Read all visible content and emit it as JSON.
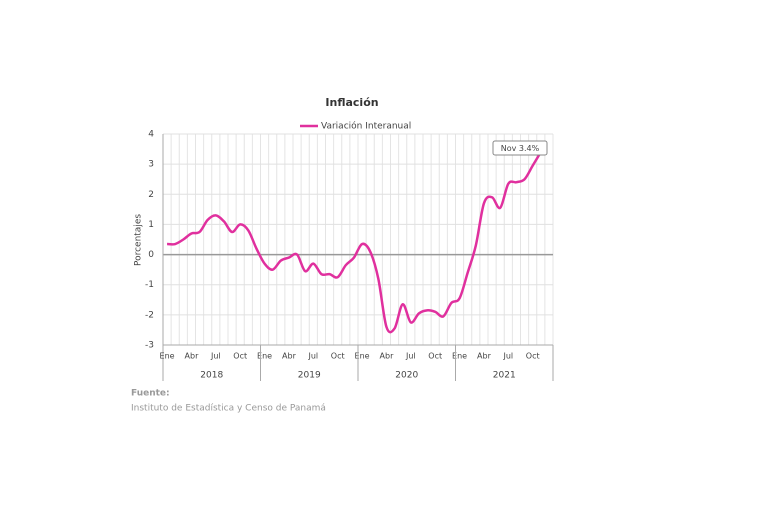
{
  "chart_data": {
    "type": "line",
    "title": "Inflación",
    "y_label": "Porcentajes",
    "categories": [
      "Ene",
      null,
      null,
      "Abr",
      null,
      null,
      "Jul",
      null,
      null,
      "Oct",
      null,
      null,
      "Ene",
      null,
      null,
      "Abr",
      null,
      null,
      "Jul",
      null,
      null,
      "Oct",
      null,
      null,
      "Ene",
      null,
      null,
      "Abr",
      null,
      null,
      "Jul",
      null,
      null,
      "Oct",
      null,
      null,
      "Ene",
      null,
      null,
      "Abr",
      null,
      null,
      "Jul",
      null,
      null,
      "Oct",
      null
    ],
    "year_groups": [
      "2018",
      "2019",
      "2020",
      "2021"
    ],
    "series": [
      {
        "name": "Variación Interanual",
        "color": "#e0309e",
        "values": [
          0.35,
          0.35,
          0.5,
          0.7,
          0.75,
          1.15,
          1.3,
          1.1,
          0.75,
          1.0,
          0.8,
          0.2,
          -0.3,
          -0.5,
          -0.2,
          -0.1,
          0.0,
          -0.55,
          -0.3,
          -0.65,
          -0.65,
          -0.75,
          -0.35,
          -0.1,
          0.35,
          0.1,
          -0.8,
          -2.4,
          -2.45,
          -1.65,
          -2.25,
          -1.95,
          -1.85,
          -1.9,
          -2.05,
          -1.6,
          -1.45,
          -0.6,
          0.3,
          1.7,
          1.9,
          1.55,
          2.35,
          2.4,
          2.5,
          2.95,
          3.4
        ]
      }
    ],
    "annotation": "Nov 3.4%",
    "ylim": [
      -3,
      4
    ],
    "yticks": [
      -3,
      -2,
      -1,
      0,
      1,
      2,
      3,
      4
    ],
    "grid": true,
    "source_label": "Fuente:",
    "source": "Instituto de Estadística y Censo de Panamá"
  }
}
